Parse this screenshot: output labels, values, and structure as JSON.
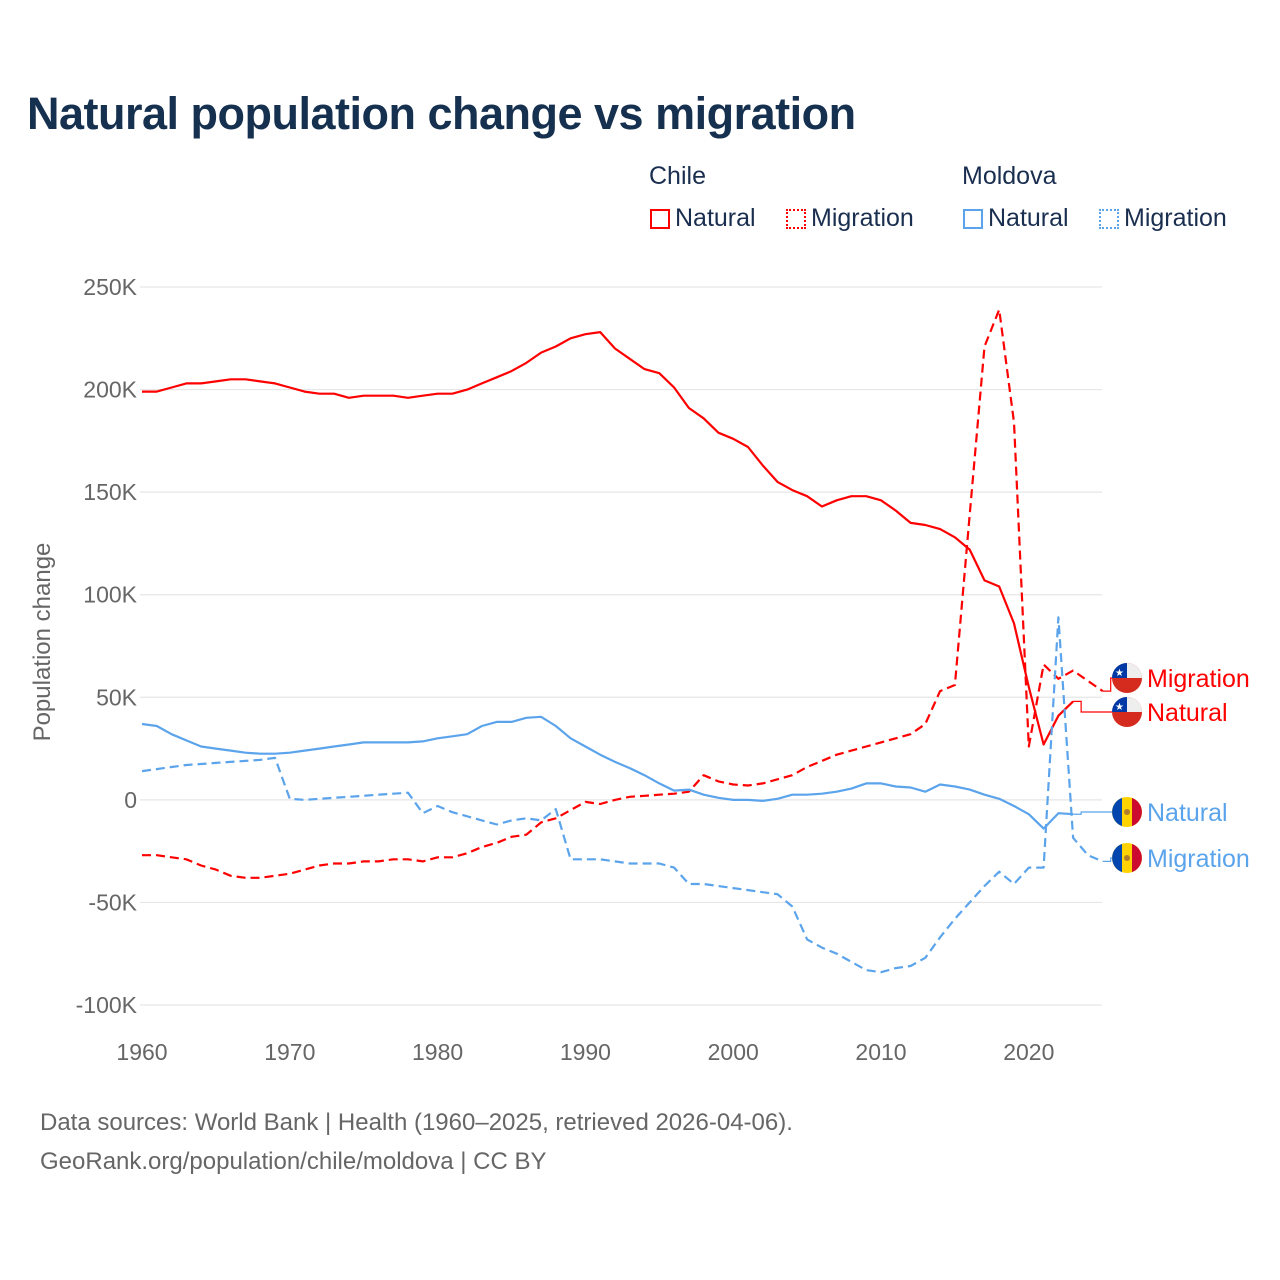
{
  "title": "Natural population change vs migration",
  "legend": {
    "groups": [
      {
        "name": "Chile",
        "items": [
          "Natural",
          "Migration"
        ],
        "color": "#ff0000"
      },
      {
        "name": "Moldova",
        "items": [
          "Natural",
          "Migration"
        ],
        "color": "#5ba4ec"
      }
    ]
  },
  "footer": {
    "line1": "Data sources: World Bank | Health (1960–2025, retrieved 2026-04-06).",
    "line2": "GeoRank.org/population/chile/moldova | CC BY"
  },
  "chart_data": {
    "type": "line",
    "title": "Natural population change vs migration",
    "xlabel": "",
    "ylabel": "Population change",
    "xlim": [
      1960,
      2025
    ],
    "ylim": [
      -100000,
      250000
    ],
    "x_ticks": [
      "1960",
      "1970",
      "1980",
      "1990",
      "2000",
      "2010",
      "2020"
    ],
    "y_ticks": [
      {
        "value": 250000,
        "label": "250K"
      },
      {
        "value": 200000,
        "label": "200K"
      },
      {
        "value": 150000,
        "label": "150K"
      },
      {
        "value": 100000,
        "label": "100K"
      },
      {
        "value": 50000,
        "label": "50K"
      },
      {
        "value": 0,
        "label": "0"
      },
      {
        "value": -50000,
        "label": "-50K"
      },
      {
        "value": -100000,
        "label": "-100K"
      }
    ],
    "grid": true,
    "x_start": 1960,
    "series": [
      {
        "name": "Chile Natural",
        "label": "Natural",
        "country": "Chile",
        "color": "#ff0000",
        "dash": false,
        "values_k": [
          199,
          199,
          201,
          203,
          203,
          204,
          205,
          205,
          204,
          203,
          201,
          199,
          198,
          198,
          196,
          197,
          197,
          197,
          196,
          197,
          198,
          198,
          200,
          203,
          206,
          209,
          213,
          218,
          221,
          225,
          227,
          228,
          220,
          215,
          210,
          208,
          201,
          191,
          186,
          179,
          176,
          172,
          163,
          155,
          151,
          148,
          143,
          146,
          148,
          148,
          146,
          141,
          135,
          134,
          132,
          128,
          122,
          107,
          104,
          86,
          55,
          27,
          41,
          48
        ]
      },
      {
        "name": "Chile Migration",
        "label": "Migration",
        "country": "Chile",
        "color": "#ff0000",
        "dash": true,
        "values_k": [
          -27,
          -27,
          -28,
          -29,
          -32,
          -34,
          -37,
          -38,
          -38,
          -37,
          -36,
          -34,
          -32,
          -31,
          -31,
          -30,
          -30,
          -29,
          -29,
          -30,
          -28,
          -28,
          -26,
          -23,
          -21,
          -18,
          -17,
          -11,
          -9,
          -5,
          -1,
          -2,
          0,
          1.5,
          2,
          2.5,
          3,
          4,
          12,
          9,
          7.5,
          7,
          8,
          10,
          12,
          16,
          19,
          22,
          24,
          26,
          28,
          30,
          32,
          37,
          53,
          56,
          139,
          221,
          239,
          184,
          26,
          66,
          59,
          63,
          58,
          53
        ]
      },
      {
        "name": "Moldova Natural",
        "label": "Natural",
        "country": "Moldova",
        "color": "#5ba4ec",
        "dash": false,
        "values_k": [
          37,
          36,
          32,
          29,
          26,
          25,
          24,
          23,
          22.5,
          22.5,
          23,
          24,
          25,
          26,
          27,
          28,
          28,
          28,
          28,
          28.5,
          30,
          31,
          32,
          36,
          38,
          38,
          40,
          40.5,
          36,
          30,
          26,
          22,
          18.5,
          15.5,
          12,
          8,
          4.5,
          5,
          2.5,
          1,
          0,
          0,
          -0.5,
          0.5,
          2.5,
          2.5,
          3,
          4,
          5.5,
          8,
          8,
          6.5,
          6,
          4,
          7.5,
          6.5,
          5,
          2.5,
          0.5,
          -3,
          -7,
          -14,
          -6.5,
          -7
        ]
      },
      {
        "name": "Moldova Migration",
        "label": "Migration",
        "country": "Moldova",
        "color": "#5ba4ec",
        "dash": true,
        "values_k": [
          14,
          15,
          16,
          17,
          17.5,
          18,
          18.5,
          19,
          19.5,
          20.5,
          0.5,
          0,
          0.5,
          1,
          1.5,
          2,
          2.5,
          3,
          3.5,
          -6.5,
          -3,
          -6,
          -8,
          -10,
          -12,
          -10,
          -9,
          -10,
          -4.5,
          -29,
          -29,
          -29,
          -30,
          -31,
          -31,
          -31,
          -33,
          -41,
          -41,
          -42,
          -43,
          -44,
          -45,
          -46,
          -52,
          -68,
          -72,
          -75,
          -79,
          -83,
          -84,
          -82,
          -81,
          -77,
          -67,
          -58,
          -50,
          -42,
          -35,
          -41,
          -33,
          -33,
          89,
          -18.5,
          -27,
          -30
        ]
      }
    ]
  }
}
